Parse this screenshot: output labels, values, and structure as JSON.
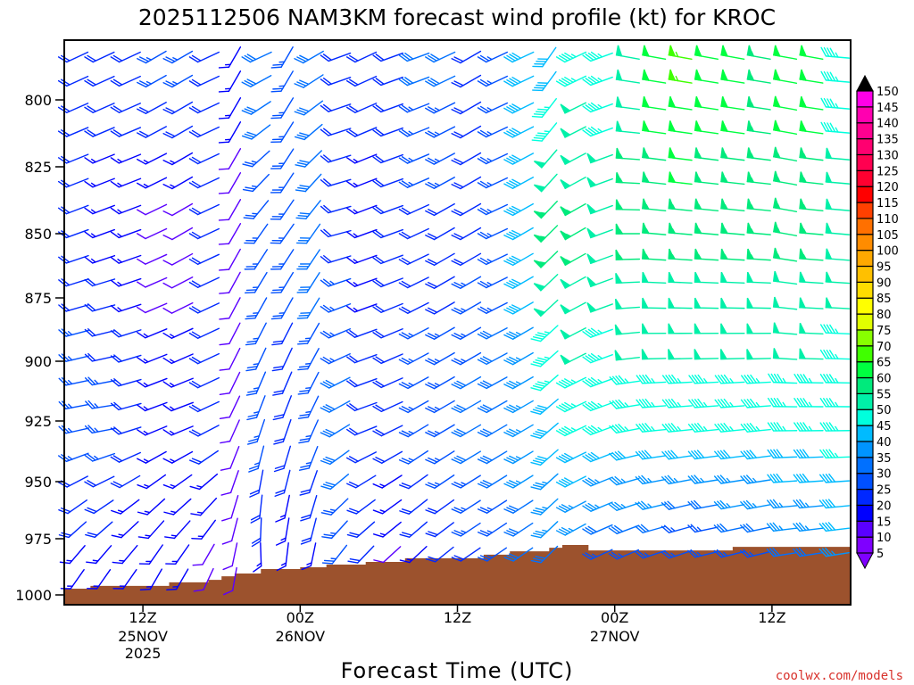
{
  "chart_data": {
    "type": "wind-barb-time-height",
    "title": "2025112506 NAM3KM forecast wind profile (kt) for KROC",
    "xlabel": "Forecast Time (UTC)",
    "ylabel": "",
    "credit": "coolwx.com/models",
    "x_range_hours": [
      0,
      60
    ],
    "y_range_hpa": [
      778,
      1003
    ],
    "y_ticks": [
      "800",
      "825",
      "850",
      "875",
      "900",
      "925",
      "950",
      "975",
      "1000"
    ],
    "x_ticks": [
      {
        "hour": 6,
        "label": "12Z",
        "date": "25NOV",
        "year": "2025"
      },
      {
        "hour": 18,
        "label": "00Z",
        "date": "26NOV",
        "year": ""
      },
      {
        "hour": 30,
        "label": "12Z",
        "date": "",
        "year": ""
      },
      {
        "hour": 42,
        "label": "00Z",
        "date": "27NOV",
        "year": ""
      },
      {
        "hour": 54,
        "label": "12Z",
        "date": "",
        "year": ""
      }
    ],
    "colorbar": {
      "labels": [
        "5",
        "10",
        "15",
        "20",
        "25",
        "30",
        "35",
        "40",
        "45",
        "50",
        "55",
        "60",
        "65",
        "70",
        "75",
        "80",
        "85",
        "90",
        "95",
        "100",
        "105",
        "110",
        "115",
        "120",
        "125",
        "130",
        "135",
        "140",
        "145",
        "150"
      ],
      "colors": [
        "#7f00ff",
        "#5a00ff",
        "#0000ff",
        "#0028ff",
        "#0050ff",
        "#0070ff",
        "#0094ff",
        "#00bbff",
        "#00ffdd",
        "#00f0a8",
        "#00ea7c",
        "#00ff40",
        "#40ff00",
        "#88ff00",
        "#e0ff00",
        "#ffff00",
        "#ffdc00",
        "#ffc000",
        "#ffa800",
        "#ff8c00",
        "#ff7000",
        "#ff4000",
        "#ff0000",
        "#ff0030",
        "#ff0050",
        "#ff0070",
        "#ff0090",
        "#ff00b0",
        "#ff00e8"
      ],
      "over_color": "#000000",
      "under_color": "#7f00ff"
    },
    "levels_hpa": [
      784,
      793,
      803,
      812,
      822,
      831,
      841,
      850,
      860,
      869,
      879,
      889,
      899,
      909,
      919,
      929,
      940,
      950,
      961,
      971,
      982,
      993
    ],
    "anchor_levels_hpa": [
      785,
      850,
      925,
      990
    ],
    "columns": [
      {
        "hour": 1,
        "dir": [
          245,
          250,
          260,
          215
        ],
        "spd": [
          20,
          20,
          25,
          15
        ]
      },
      {
        "hour": 3,
        "dir": [
          245,
          250,
          262,
          215
        ],
        "spd": [
          20,
          15,
          25,
          15
        ]
      },
      {
        "hour": 5,
        "dir": [
          245,
          250,
          255,
          215
        ],
        "spd": [
          20,
          15,
          20,
          15
        ]
      },
      {
        "hour": 7,
        "dir": [
          240,
          245,
          250,
          210
        ],
        "spd": [
          25,
          10,
          15,
          15
        ]
      },
      {
        "hour": 9,
        "dir": [
          240,
          240,
          250,
          210
        ],
        "spd": [
          25,
          10,
          15,
          15
        ]
      },
      {
        "hour": 11,
        "dir": [
          245,
          245,
          245,
          205
        ],
        "spd": [
          20,
          20,
          20,
          10
        ]
      },
      {
        "hour": 13,
        "dir": [
          210,
          210,
          205,
          190
        ],
        "spd": [
          15,
          10,
          10,
          10
        ]
      },
      {
        "hour": 15,
        "dir": [
          245,
          215,
          200,
          175
        ],
        "spd": [
          30,
          25,
          25,
          15
        ]
      },
      {
        "hour": 17,
        "dir": [
          210,
          215,
          200,
          185
        ],
        "spd": [
          25,
          25,
          20,
          15
        ]
      },
      {
        "hour": 19,
        "dir": [
          240,
          215,
          205,
          190
        ],
        "spd": [
          30,
          30,
          25,
          15
        ]
      },
      {
        "hour": 21,
        "dir": [
          250,
          255,
          240,
          215
        ],
        "spd": [
          20,
          20,
          30,
          25
        ]
      },
      {
        "hour": 23,
        "dir": [
          245,
          250,
          250,
          220
        ],
        "spd": [
          20,
          15,
          20,
          20
        ]
      },
      {
        "hour": 25,
        "dir": [
          250,
          250,
          245,
          225
        ],
        "spd": [
          20,
          20,
          20,
          10
        ]
      },
      {
        "hour": 27,
        "dir": [
          250,
          245,
          240,
          225
        ],
        "spd": [
          30,
          20,
          25,
          15
        ]
      },
      {
        "hour": 29,
        "dir": [
          245,
          240,
          240,
          230
        ],
        "spd": [
          30,
          20,
          25,
          20
        ]
      },
      {
        "hour": 31,
        "dir": [
          240,
          240,
          240,
          235
        ],
        "spd": [
          20,
          20,
          30,
          20
        ]
      },
      {
        "hour": 33,
        "dir": [
          245,
          245,
          240,
          235
        ],
        "spd": [
          25,
          25,
          30,
          25
        ]
      },
      {
        "hour": 35,
        "dir": [
          245,
          240,
          240,
          235
        ],
        "spd": [
          40,
          40,
          35,
          30
        ]
      },
      {
        "hour": 37,
        "dir": [
          215,
          225,
          230,
          225
        ],
        "spd": [
          40,
          55,
          40,
          30
        ]
      },
      {
        "hour": 39,
        "dir": [
          245,
          240,
          245,
          240
        ],
        "spd": [
          45,
          55,
          45,
          30
        ]
      },
      {
        "hour": 41,
        "dir": [
          250,
          250,
          250,
          245
        ],
        "spd": [
          45,
          50,
          45,
          25
        ]
      },
      {
        "hour": 43,
        "dir": [
          280,
          270,
          260,
          245
        ],
        "spd": [
          50,
          55,
          45,
          25
        ]
      },
      {
        "hour": 45,
        "dir": [
          280,
          275,
          265,
          250
        ],
        "spd": [
          60,
          55,
          45,
          25
        ]
      },
      {
        "hour": 47,
        "dir": [
          280,
          275,
          265,
          250
        ],
        "spd": [
          65,
          55,
          45,
          20
        ]
      },
      {
        "hour": 49,
        "dir": [
          280,
          275,
          265,
          255
        ],
        "spd": [
          60,
          55,
          45,
          20
        ]
      },
      {
        "hour": 51,
        "dir": [
          280,
          275,
          265,
          255
        ],
        "spd": [
          60,
          55,
          45,
          25
        ]
      },
      {
        "hour": 53,
        "dir": [
          280,
          275,
          265,
          255
        ],
        "spd": [
          55,
          55,
          45,
          25
        ]
      },
      {
        "hour": 55,
        "dir": [
          280,
          280,
          270,
          260
        ],
        "spd": [
          60,
          55,
          45,
          30
        ]
      },
      {
        "hour": 57,
        "dir": [
          280,
          275,
          270,
          260
        ],
        "spd": [
          60,
          55,
          45,
          30
        ]
      },
      {
        "hour": 59,
        "dir": [
          275,
          275,
          270,
          260
        ],
        "spd": [
          45,
          50,
          45,
          35
        ]
      }
    ],
    "surface_pressure_hourly_hpa": [
      997.2,
      997.2,
      996,
      996,
      996,
      996,
      996,
      996,
      994.4,
      994.4,
      994.4,
      993.3,
      991.7,
      990.5,
      990.5,
      988.5,
      988.5,
      988.5,
      987.7,
      987.7,
      986.5,
      986.5,
      986.5,
      985.3,
      985.3,
      985.3,
      983.7,
      983.7,
      983.7,
      983.7,
      983.7,
      983.7,
      982.1,
      982.1,
      980.6,
      980.6,
      980.6,
      979,
      977.8,
      977.8,
      980.2,
      980.2,
      980.2,
      980.2,
      980.2,
      980.2,
      980.2,
      980.2,
      980.2,
      980.2,
      980.2,
      978.6,
      978.6,
      978.6,
      978.6,
      978.6,
      978.6,
      978.6,
      978.6,
      978.6
    ],
    "terrain_color": "#9c522d"
  }
}
